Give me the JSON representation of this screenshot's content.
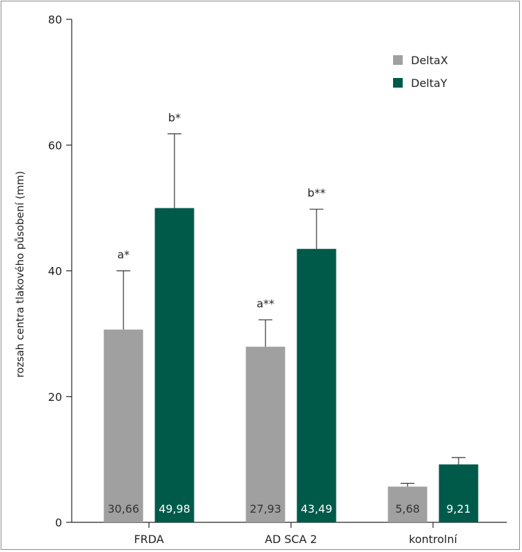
{
  "chart_data": {
    "type": "bar",
    "categories": [
      "FRDA",
      "AD SCA 2",
      "kontrolní"
    ],
    "ylabel": "rozsah centra tlakového působení (mm)",
    "ylim": [
      0,
      80
    ],
    "yticks": [
      "0",
      "20",
      "40",
      "60",
      "80"
    ],
    "ytick_values": [
      0,
      20,
      40,
      60,
      80
    ],
    "grid": false,
    "legend_position": "top-right",
    "series": [
      {
        "name": "DeltaX",
        "color": "#a0a0a0",
        "label_color": "#333333",
        "values": [
          30.66,
          27.93,
          5.68
        ],
        "value_labels": [
          "30,66",
          "27,93",
          "5,68"
        ],
        "error_upper": [
          40.0,
          32.2,
          6.2
        ],
        "annotations": [
          "a*",
          "a**",
          ""
        ]
      },
      {
        "name": "DeltaY",
        "color": "#005a4a",
        "label_color": "#ffffff",
        "values": [
          49.98,
          43.49,
          9.21
        ],
        "value_labels": [
          "49,98",
          "43,49",
          "9,21"
        ],
        "error_upper": [
          61.8,
          49.8,
          10.3
        ],
        "annotations": [
          "b*",
          "b**",
          ""
        ]
      }
    ]
  }
}
